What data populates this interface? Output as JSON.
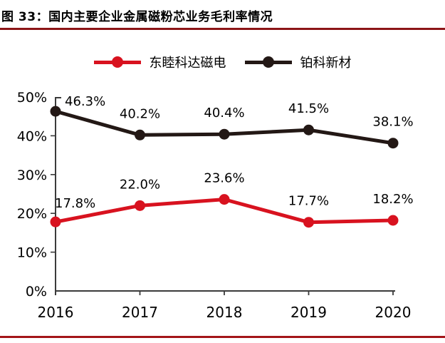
{
  "title": "图 33：国内主要企业金属磁粉芯业务毛利率情况",
  "colors": {
    "background": "#ffffff",
    "header_rule": "#8c1517",
    "footer_rule": "#a31418",
    "axis": "#3a3a3a",
    "text": "#000000",
    "series_red": "#d8121f",
    "series_dark": "#231815"
  },
  "chart_data": {
    "type": "line",
    "title": "",
    "xlabel": "",
    "ylabel": "",
    "categories": [
      "2016",
      "2017",
      "2018",
      "2019",
      "2020"
    ],
    "series": [
      {
        "name": "东睦科达磁电",
        "color": "#d8121f",
        "values": [
          17.8,
          22.0,
          23.6,
          17.7,
          18.2
        ],
        "labels": [
          "17.8%",
          "22.0%",
          "23.6%",
          "17.7%",
          "18.2%"
        ]
      },
      {
        "name": "铂科新材",
        "color": "#231815",
        "values": [
          46.3,
          40.2,
          40.4,
          41.5,
          38.1
        ],
        "labels": [
          "46.3%",
          "40.2%",
          "40.4%",
          "41.5%",
          "38.1%"
        ]
      }
    ],
    "ylim": [
      0,
      50
    ],
    "ytick_step": 10,
    "ytick_labels": [
      "0%",
      "10%",
      "20%",
      "30%",
      "40%",
      "50%"
    ],
    "grid": false,
    "legend_position": "top-center",
    "marker": "circle"
  }
}
